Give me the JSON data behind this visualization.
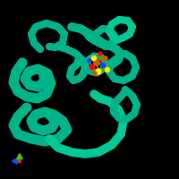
{
  "background_color": "#000000",
  "fig_size": [
    2.0,
    2.0
  ],
  "dpi": 100,
  "protein_color": "#00b388",
  "protein_color2": "#00c896",
  "axis_arrow_blue": "#0055ff",
  "axis_arrow_green": "#44cc00",
  "axis_dot_red": "#ff2200",
  "molecule_colors": [
    "#cc5500",
    "#ff0000",
    "#0044ff",
    "#ffee00",
    "#ff4400"
  ]
}
